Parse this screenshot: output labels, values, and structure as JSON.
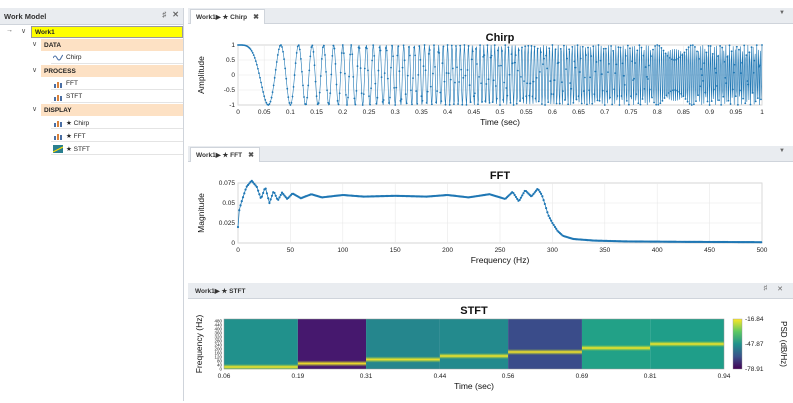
{
  "work_model": {
    "title": "Work Model",
    "pin_icon": "pin-icon",
    "close_icon": "close-icon",
    "root": "Work1",
    "categories": [
      {
        "name": "DATA",
        "items": [
          "Chirp"
        ]
      },
      {
        "name": "PROCESS",
        "items": [
          "FFT",
          "STFT"
        ]
      },
      {
        "name": "DISPLAY",
        "items": [
          "★ Chirp",
          "★ FFT",
          "★ STFT"
        ]
      }
    ]
  },
  "tabs": {
    "chirp": "Work1▶ ★ Chirp",
    "fft": "Work1▶ ★ FFT",
    "stft": "Work1▶ ★ STFT"
  },
  "colors": {
    "accent": "#1f77b4",
    "root_bg": "#ffff00",
    "category_bg": "#fde1c4"
  },
  "chart_data": [
    {
      "type": "line",
      "title": "Chirp",
      "xlabel": "Time (sec)",
      "ylabel": "Amplitude",
      "xlim": [
        0,
        1
      ],
      "ylim": [
        -1,
        1
      ],
      "xticks": [
        "0",
        "0.05",
        "0.1",
        "0.15",
        "0.2",
        "0.25",
        "0.3",
        "0.35",
        "0.4",
        "0.45",
        "0.5",
        "0.55",
        "0.6",
        "0.65",
        "0.7",
        "0.75",
        "0.8",
        "0.85",
        "0.9",
        "0.95",
        "1"
      ],
      "yticks": [
        "1",
        "0.5",
        "0",
        "-0.5",
        "-1"
      ],
      "signal": {
        "f0_hz": 0,
        "f1_hz": 300,
        "duration_sec": 1,
        "sample_rate_hz": 1000,
        "markers": true
      }
    },
    {
      "type": "line",
      "title": "FFT",
      "xlabel": "Frequency (Hz)",
      "ylabel": "Magnitude",
      "xlim": [
        0,
        500
      ],
      "ylim": [
        0,
        0.08
      ],
      "xticks": [
        "0",
        "50",
        "100",
        "150",
        "200",
        "250",
        "300",
        "350",
        "400",
        "450",
        "500"
      ],
      "yticks": [
        "0.075",
        "0.05",
        "0.025",
        "0"
      ],
      "series": {
        "points": [
          [
            0,
            0.02
          ],
          [
            1,
            0.04
          ],
          [
            3,
            0.05
          ],
          [
            8,
            0.07
          ],
          [
            13,
            0.078
          ],
          [
            18,
            0.07
          ],
          [
            22,
            0.055
          ],
          [
            26,
            0.07
          ],
          [
            30,
            0.05
          ],
          [
            34,
            0.065
          ],
          [
            38,
            0.053
          ],
          [
            42,
            0.063
          ],
          [
            47,
            0.055
          ],
          [
            52,
            0.062
          ],
          [
            60,
            0.056
          ],
          [
            70,
            0.061
          ],
          [
            80,
            0.057
          ],
          [
            100,
            0.06
          ],
          [
            120,
            0.058
          ],
          [
            150,
            0.059
          ],
          [
            180,
            0.058
          ],
          [
            200,
            0.06
          ],
          [
            220,
            0.057
          ],
          [
            240,
            0.061
          ],
          [
            255,
            0.055
          ],
          [
            262,
            0.064
          ],
          [
            268,
            0.052
          ],
          [
            274,
            0.066
          ],
          [
            280,
            0.058
          ],
          [
            286,
            0.068
          ],
          [
            290,
            0.06
          ],
          [
            293,
            0.048
          ],
          [
            296,
            0.035
          ],
          [
            300,
            0.025
          ],
          [
            305,
            0.015
          ],
          [
            310,
            0.009
          ],
          [
            320,
            0.005
          ],
          [
            340,
            0.003
          ],
          [
            370,
            0.002
          ],
          [
            420,
            0.0015
          ],
          [
            500,
            0.001
          ]
        ]
      }
    },
    {
      "type": "heatmap",
      "title": "STFT",
      "xlabel": "Time (sec)",
      "ylabel": "Frequency (Hz)",
      "xticks": [
        "0.06",
        "0.19",
        "0.31",
        "0.44",
        "0.56",
        "0.69",
        "0.81",
        "0.94"
      ],
      "yticks": [
        "480",
        "440",
        "400",
        "360",
        "320",
        "280",
        "240",
        "200",
        "160",
        "120",
        "80",
        "40",
        "0"
      ],
      "ylim": [
        0,
        500
      ],
      "colorbar": {
        "label": "PSD (dB/Hz)",
        "ticks": [
          "-16.84",
          "-47.87",
          "-78.91"
        ]
      },
      "segments": [
        {
          "t0": 0.06,
          "t1": 0.19,
          "bg": "#21918c",
          "peak_hz": 20
        },
        {
          "t0": 0.19,
          "t1": 0.31,
          "bg": "#46186e",
          "peak_hz": 55
        },
        {
          "t0": 0.31,
          "t1": 0.44,
          "bg": "#25868d",
          "peak_hz": 95
        },
        {
          "t0": 0.44,
          "t1": 0.56,
          "bg": "#238a8d",
          "peak_hz": 130
        },
        {
          "t0": 0.56,
          "t1": 0.69,
          "bg": "#3a4c8a",
          "peak_hz": 170
        },
        {
          "t0": 0.69,
          "t1": 0.81,
          "bg": "#22a187",
          "peak_hz": 210
        },
        {
          "t0": 0.81,
          "t1": 0.94,
          "bg": "#1f9e89",
          "peak_hz": 250
        }
      ]
    }
  ]
}
